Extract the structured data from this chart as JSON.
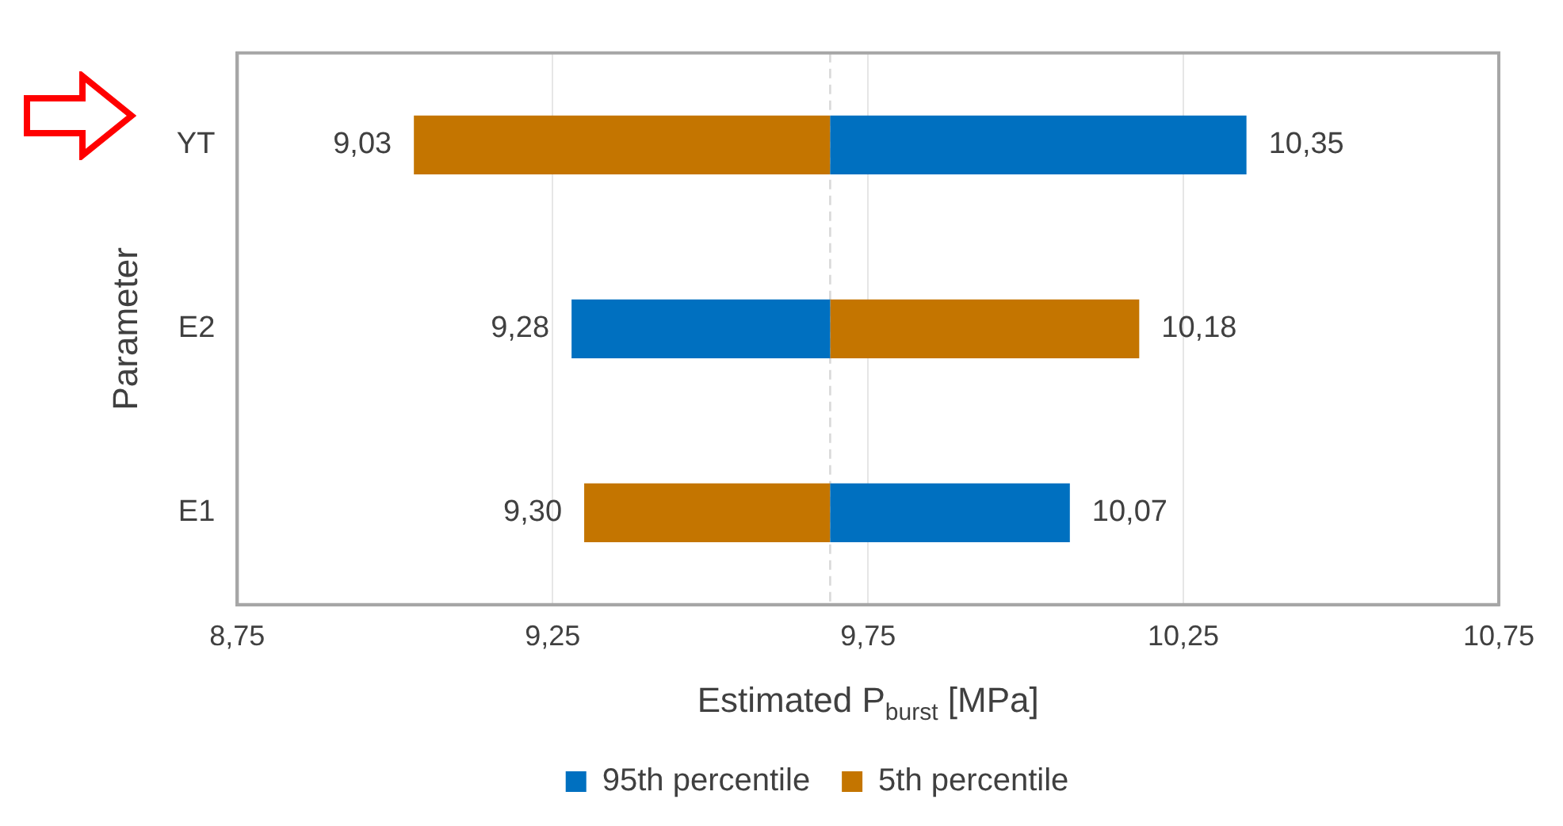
{
  "chart_data": {
    "type": "bar",
    "orientation": "horizontal",
    "categories": [
      "YT",
      "E2",
      "E1"
    ],
    "series": [
      {
        "name": "95th percentile",
        "color": "#0070c0",
        "values": [
          0.66,
          -0.41,
          0.38
        ],
        "base": [
          9.69,
          9.69,
          9.69
        ],
        "value_labels": [
          "10,35",
          "9,28",
          "10,07"
        ]
      },
      {
        "name": "5th percentile",
        "color": "#c47500",
        "values": [
          -0.66,
          0.49,
          -0.39
        ],
        "base": [
          9.69,
          9.69,
          9.69
        ],
        "value_labels": [
          "9,03",
          "10,18",
          "9,30"
        ]
      }
    ],
    "xlim": [
      8.75,
      10.75
    ],
    "xticks": [
      {
        "value": 8.75,
        "label": "8,75"
      },
      {
        "value": 9.25,
        "label": "9,25"
      },
      {
        "value": 9.75,
        "label": "9,75"
      },
      {
        "value": 10.25,
        "label": "10,25"
      },
      {
        "value": 10.75,
        "label": "10,75"
      }
    ],
    "xlabel": "Estimated P$_{burst}$ [MPa]",
    "ylabel": "Parameter",
    "ref_lines": [
      {
        "axis": "x",
        "value": 9.69,
        "color": "#d9d9d9",
        "line_style": "dashed"
      }
    ],
    "grid": "x",
    "legend": "bottom"
  }
}
